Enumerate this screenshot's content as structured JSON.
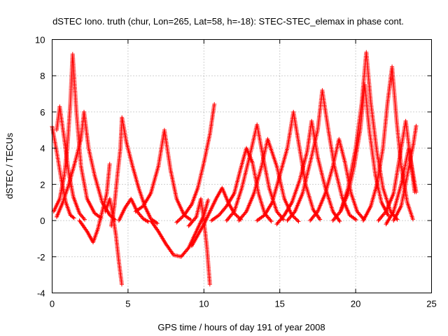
{
  "chart_data": {
    "type": "scatter",
    "title": "dSTEC Iono. truth (chur, Lon=265, Lat=58, h=-18): STEC-STEC_elemax in phase cont.",
    "xlabel": "GPS time / hours of day 191 of year 2008",
    "ylabel": "dSTEC  / TECUs",
    "xlim": [
      0,
      25
    ],
    "ylim": [
      -4,
      10
    ],
    "xticks": [
      0,
      5,
      10,
      15,
      20,
      25
    ],
    "yticks": [
      -4,
      -2,
      0,
      2,
      4,
      6,
      8,
      10
    ],
    "grid": true,
    "marker": "+",
    "color": "#ff0000",
    "arcs": [
      [
        [
          0.0,
          5.2
        ],
        [
          0.3,
          3.8
        ],
        [
          0.6,
          2.3
        ],
        [
          0.9,
          1.0
        ],
        [
          1.2,
          0.3
        ],
        [
          1.5,
          0.1
        ]
      ],
      [
        [
          0.1,
          0.5
        ],
        [
          0.5,
          1.2
        ],
        [
          0.8,
          2.5
        ],
        [
          1.0,
          4.0
        ],
        [
          1.2,
          6.5
        ],
        [
          1.35,
          9.2
        ],
        [
          1.6,
          6.0
        ],
        [
          1.9,
          3.0
        ],
        [
          2.3,
          1.2
        ],
        [
          2.8,
          0.4
        ],
        [
          3.3,
          0.1
        ]
      ],
      [
        [
          0.3,
          0.2
        ],
        [
          0.7,
          1.0
        ],
        [
          1.1,
          2.0
        ],
        [
          1.5,
          3.2
        ],
        [
          1.9,
          4.5
        ],
        [
          2.1,
          6.0
        ],
        [
          2.4,
          4.0
        ],
        [
          2.8,
          2.5
        ],
        [
          3.3,
          1.0
        ],
        [
          3.8,
          0.3
        ],
        [
          4.2,
          0.0
        ]
      ],
      [
        [
          0.3,
          5.0
        ],
        [
          0.5,
          6.3
        ],
        [
          0.8,
          4.5
        ],
        [
          1.1,
          2.6
        ],
        [
          1.4,
          1.3
        ],
        [
          1.8,
          0.4
        ],
        [
          2.2,
          0.0
        ]
      ],
      [
        [
          1.8,
          0.0
        ],
        [
          2.3,
          -0.6
        ],
        [
          2.7,
          -1.2
        ],
        [
          3.0,
          -0.5
        ],
        [
          3.3,
          0.5
        ],
        [
          3.6,
          1.5
        ],
        [
          3.8,
          3.2
        ]
      ],
      [
        [
          3.5,
          0.5
        ],
        [
          3.8,
          1.2
        ],
        [
          4.0,
          0.3
        ],
        [
          4.2,
          -0.8
        ],
        [
          4.4,
          -2.3
        ],
        [
          4.6,
          -3.6
        ]
      ],
      [
        [
          3.9,
          -0.3
        ],
        [
          4.1,
          0.8
        ],
        [
          4.3,
          2.5
        ],
        [
          4.5,
          4.0
        ],
        [
          4.6,
          5.7
        ],
        [
          4.9,
          4.3
        ],
        [
          5.3,
          3.0
        ],
        [
          5.7,
          1.8
        ],
        [
          6.1,
          0.8
        ],
        [
          6.5,
          0.1
        ],
        [
          7.0,
          -0.2
        ]
      ],
      [
        [
          4.4,
          0.0
        ],
        [
          4.8,
          0.7
        ],
        [
          5.2,
          1.2
        ],
        [
          5.6,
          0.5
        ],
        [
          6.0,
          0.1
        ],
        [
          6.4,
          -0.1
        ]
      ],
      [
        [
          5.5,
          0.5
        ],
        [
          6.0,
          0.8
        ],
        [
          6.5,
          1.5
        ],
        [
          7.0,
          3.0
        ],
        [
          7.4,
          5.0
        ],
        [
          7.8,
          2.8
        ],
        [
          8.2,
          1.2
        ],
        [
          8.7,
          0.3
        ],
        [
          9.2,
          0.0
        ]
      ],
      [
        [
          6.5,
          0.0
        ],
        [
          7.0,
          -0.6
        ],
        [
          7.5,
          -1.3
        ],
        [
          8.0,
          -1.9
        ],
        [
          8.5,
          -2.0
        ],
        [
          9.0,
          -1.5
        ],
        [
          9.5,
          -0.6
        ],
        [
          10.0,
          0.3
        ],
        [
          10.3,
          1.2
        ]
      ],
      [
        [
          8.2,
          -0.1
        ],
        [
          8.7,
          0.3
        ],
        [
          9.2,
          0.9
        ],
        [
          9.6,
          1.8
        ],
        [
          10.0,
          3.2
        ],
        [
          10.4,
          4.8
        ],
        [
          10.7,
          6.5
        ]
      ],
      [
        [
          9.0,
          -0.3
        ],
        [
          9.5,
          0.2
        ],
        [
          9.8,
          1.2
        ],
        [
          10.0,
          0.0
        ],
        [
          10.2,
          -1.5
        ],
        [
          10.4,
          -3.6
        ]
      ],
      [
        [
          9.2,
          -1.4
        ],
        [
          9.6,
          -0.8
        ],
        [
          10.0,
          -0.2
        ],
        [
          10.4,
          0.5
        ],
        [
          10.8,
          1.2
        ],
        [
          11.2,
          1.8
        ],
        [
          11.6,
          1.0
        ],
        [
          12.0,
          0.4
        ],
        [
          12.5,
          0.0
        ]
      ],
      [
        [
          10.5,
          0.0
        ],
        [
          11.0,
          0.3
        ],
        [
          11.5,
          0.8
        ],
        [
          12.0,
          1.5
        ],
        [
          12.4,
          2.8
        ],
        [
          12.8,
          4.0
        ],
        [
          13.2,
          3.2
        ],
        [
          13.6,
          1.5
        ],
        [
          14.0,
          0.4
        ],
        [
          14.5,
          -0.1
        ]
      ],
      [
        [
          11.5,
          0.0
        ],
        [
          12.0,
          0.5
        ],
        [
          12.5,
          1.8
        ],
        [
          13.0,
          3.5
        ],
        [
          13.5,
          5.3
        ],
        [
          13.9,
          3.5
        ],
        [
          14.3,
          1.8
        ],
        [
          14.8,
          0.5
        ],
        [
          15.3,
          0.0
        ]
      ],
      [
        [
          12.3,
          0.0
        ],
        [
          12.8,
          0.5
        ],
        [
          13.3,
          1.5
        ],
        [
          13.8,
          3.0
        ],
        [
          14.2,
          4.5
        ],
        [
          14.8,
          3.0
        ],
        [
          15.3,
          1.2
        ],
        [
          15.8,
          0.3
        ],
        [
          16.3,
          -0.1
        ]
      ],
      [
        [
          13.5,
          0.0
        ],
        [
          14.0,
          0.3
        ],
        [
          14.5,
          1.0
        ],
        [
          15.0,
          2.5
        ],
        [
          15.5,
          4.0
        ],
        [
          15.9,
          6.0
        ],
        [
          16.3,
          4.0
        ],
        [
          16.7,
          2.0
        ],
        [
          17.2,
          0.6
        ],
        [
          17.7,
          0.0
        ]
      ],
      [
        [
          14.8,
          -0.2
        ],
        [
          15.3,
          0.3
        ],
        [
          15.8,
          1.0
        ],
        [
          16.3,
          2.2
        ],
        [
          16.8,
          3.8
        ],
        [
          17.1,
          5.5
        ],
        [
          17.5,
          3.5
        ],
        [
          18.0,
          1.8
        ],
        [
          18.5,
          0.5
        ],
        [
          19.0,
          -0.1
        ]
      ],
      [
        [
          15.5,
          0.0
        ],
        [
          16.0,
          0.5
        ],
        [
          16.5,
          1.5
        ],
        [
          17.0,
          3.2
        ],
        [
          17.5,
          5.0
        ],
        [
          17.8,
          7.2
        ],
        [
          18.2,
          5.0
        ],
        [
          18.6,
          3.0
        ],
        [
          19.1,
          1.3
        ],
        [
          19.6,
          0.3
        ],
        [
          20.1,
          0.0
        ]
      ],
      [
        [
          17.0,
          0.0
        ],
        [
          17.5,
          0.5
        ],
        [
          18.0,
          1.5
        ],
        [
          18.5,
          3.0
        ],
        [
          18.9,
          4.5
        ],
        [
          19.3,
          3.2
        ],
        [
          19.7,
          1.5
        ],
        [
          20.1,
          0.5
        ],
        [
          20.6,
          0.0
        ]
      ],
      [
        [
          18.5,
          0.0
        ],
        [
          19.0,
          0.5
        ],
        [
          19.5,
          1.8
        ],
        [
          20.0,
          4.0
        ],
        [
          20.4,
          6.5
        ],
        [
          20.7,
          9.3
        ],
        [
          21.0,
          6.5
        ],
        [
          21.4,
          3.8
        ],
        [
          21.8,
          1.8
        ],
        [
          22.3,
          0.5
        ],
        [
          22.8,
          0.0
        ]
      ],
      [
        [
          19.0,
          0.5
        ],
        [
          19.5,
          1.5
        ],
        [
          19.9,
          3.0
        ],
        [
          20.3,
          5.0
        ],
        [
          20.6,
          7.5
        ],
        [
          20.9,
          5.0
        ],
        [
          21.3,
          2.5
        ],
        [
          21.7,
          1.0
        ],
        [
          22.2,
          0.2
        ]
      ],
      [
        [
          20.5,
          0.0
        ],
        [
          21.0,
          0.8
        ],
        [
          21.4,
          2.0
        ],
        [
          21.8,
          4.0
        ],
        [
          22.1,
          6.5
        ],
        [
          22.4,
          8.5
        ],
        [
          22.7,
          5.5
        ],
        [
          23.0,
          3.0
        ],
        [
          23.4,
          1.0
        ],
        [
          23.8,
          0.0
        ]
      ],
      [
        [
          21.5,
          0.0
        ],
        [
          22.0,
          0.5
        ],
        [
          22.5,
          1.5
        ],
        [
          22.9,
          3.5
        ],
        [
          23.3,
          5.5
        ],
        [
          23.6,
          3.5
        ],
        [
          23.9,
          1.5
        ]
      ],
      [
        [
          22.5,
          0.0
        ],
        [
          23.0,
          0.8
        ],
        [
          23.4,
          2.5
        ],
        [
          23.8,
          4.2
        ],
        [
          24.0,
          5.3
        ]
      ],
      [
        [
          22.0,
          -0.2
        ],
        [
          22.5,
          0.5
        ],
        [
          23.0,
          2.0
        ],
        [
          23.5,
          4.0
        ],
        [
          23.9,
          2.0
        ],
        [
          24.0,
          1.5
        ]
      ]
    ]
  }
}
